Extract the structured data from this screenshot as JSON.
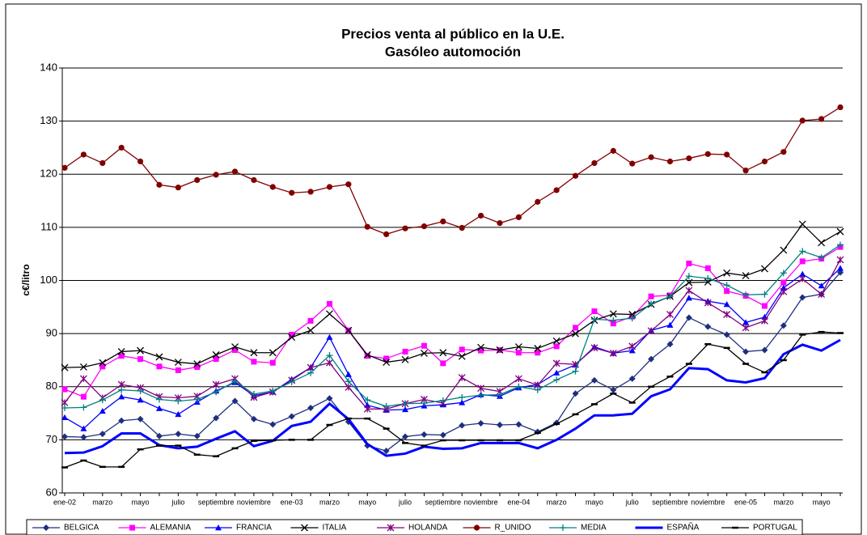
{
  "chart_data": {
    "type": "line",
    "title": "Precios venta al público en la U.E.",
    "subtitle": "Gasóleo automoción",
    "y_label": "c€/litro",
    "categories": [
      "ene-02",
      null,
      "marzo",
      null,
      "mayo",
      null,
      "julio",
      null,
      "septiembre",
      null,
      "noviembre",
      null,
      "ene-03",
      null,
      "marzo",
      null,
      "mayo",
      null,
      "julio",
      null,
      "septiembre",
      null,
      "noviembre",
      null,
      "ene-04",
      null,
      "marzo",
      null,
      "mayo",
      null,
      "julio",
      null,
      "septiembre",
      null,
      "noviembre",
      null,
      "ene-05",
      null,
      "marzo",
      null,
      "mayo",
      null
    ],
    "ylim": [
      60,
      140
    ],
    "yticks": [
      60,
      70,
      80,
      90,
      100,
      110,
      120,
      130,
      140
    ],
    "grid": true,
    "legend": "bottom",
    "series": [
      {
        "name": "BELGICA",
        "color": "#1f2f7f",
        "marker": "diamond",
        "values": [
          70.6,
          70.5,
          71.1,
          73.6,
          73.9,
          70.7,
          71.1,
          70.7,
          74.1,
          77.3,
          73.9,
          72.9,
          74.4,
          76,
          77.8,
          73.4,
          68.9,
          67.9,
          70.6,
          71,
          70.9,
          72.7,
          73.1,
          72.8,
          72.9,
          71.5,
          73.2,
          78.7,
          81.2,
          79.4,
          81.5,
          85.2,
          88,
          93,
          91.3,
          89.8,
          86.6,
          86.9,
          91.5,
          96.8,
          97.4,
          101.5
        ]
      },
      {
        "name": "ALEMANIA",
        "color": "#ff00ff",
        "marker": "square",
        "values": [
          79.5,
          78.1,
          83.8,
          85.8,
          85.2,
          83.8,
          83.1,
          83.7,
          85.2,
          86.9,
          84.7,
          84.5,
          89.8,
          92.4,
          95.6,
          90.6,
          85.8,
          85.3,
          86.6,
          87.7,
          84.4,
          87,
          86.8,
          86.9,
          86.4,
          86.4,
          87.6,
          91.1,
          94.2,
          91.9,
          93.2,
          97,
          97.2,
          103.2,
          102.3,
          98,
          97.1,
          95.2,
          99.6,
          103.6,
          104.1,
          106.3
        ]
      },
      {
        "name": "FRANCIA",
        "color": "#0000ff",
        "marker": "triangle",
        "values": [
          74.2,
          72.1,
          75.4,
          78.1,
          77.5,
          75.9,
          74.8,
          77.1,
          79.2,
          80.8,
          78.3,
          79,
          81.4,
          83.6,
          89.3,
          82.3,
          76.5,
          75.6,
          75.7,
          76.4,
          76.6,
          77,
          78.5,
          78.2,
          79.8,
          80.4,
          82.6,
          84.1,
          87.5,
          86.3,
          86.8,
          90.6,
          91.6,
          96.7,
          96.1,
          95.5,
          92.1,
          93.1,
          98.6,
          101.2,
          99,
          102.3
        ]
      },
      {
        "name": "ITALIA",
        "color": "#000000",
        "marker": "x",
        "values": [
          83.6,
          83.7,
          84.5,
          86.6,
          86.8,
          85.6,
          84.6,
          84.3,
          86,
          87.5,
          86.4,
          86.4,
          89.3,
          90.6,
          93.7,
          90.6,
          86,
          84.6,
          85.1,
          86.3,
          86.4,
          85.7,
          87.4,
          86.9,
          87.5,
          87.2,
          88.6,
          90,
          92.5,
          93.7,
          93.6,
          95.5,
          97,
          99.6,
          99.7,
          101.4,
          100.9,
          102.2,
          105.7,
          110.6,
          107.1,
          109.2
        ]
      },
      {
        "name": "HOLANDA",
        "color": "#800080",
        "marker": "star",
        "values": [
          77,
          81.5,
          77.9,
          80.4,
          79.8,
          78.1,
          77.9,
          78.2,
          80.4,
          81.5,
          78,
          79,
          81.2,
          83.6,
          84.5,
          79.9,
          75.8,
          75.8,
          76.8,
          77.6,
          76.9,
          81.7,
          79.7,
          79.1,
          81.5,
          80.3,
          84.4,
          84.2,
          87.3,
          86.3,
          87.6,
          90.5,
          93.6,
          98.1,
          95.8,
          93.6,
          91.1,
          92.4,
          97.9,
          100.3,
          97.4,
          103.9
        ]
      },
      {
        "name": "R_UNIDO",
        "color": "#800000",
        "marker": "circle",
        "values": [
          121.2,
          123.7,
          122.1,
          125,
          122.4,
          118,
          117.5,
          118.9,
          119.9,
          120.5,
          118.9,
          117.6,
          116.5,
          116.7,
          117.6,
          118.1,
          110.1,
          108.7,
          109.8,
          110.2,
          111.1,
          109.9,
          112.2,
          110.8,
          111.9,
          114.8,
          117,
          119.7,
          122.1,
          124.4,
          122,
          123.2,
          122.4,
          123,
          123.8,
          123.7,
          120.7,
          122.4,
          124.2,
          130.1,
          130.4,
          132.6
        ]
      },
      {
        "name": "MEDIA",
        "color": "#008080",
        "marker": "plus",
        "values": [
          76,
          76.1,
          77.5,
          79.4,
          79.2,
          77.6,
          77.3,
          77.6,
          79,
          81,
          78.6,
          79.2,
          80.9,
          82.6,
          85.9,
          81,
          77.5,
          76.3,
          76.8,
          76.9,
          77.4,
          78,
          78.4,
          78.5,
          80,
          79.4,
          81.3,
          82.9,
          92.7,
          92.5,
          92.9,
          95.6,
          97,
          100.8,
          100.4,
          99.1,
          97.3,
          97.4,
          101.4,
          105.5,
          104.3,
          106.7
        ]
      },
      {
        "name": "ESPAÑA",
        "color": "#0000ff",
        "marker": "none",
        "width": 3,
        "values": [
          67.5,
          67.6,
          68.8,
          71.2,
          71.2,
          69,
          68.4,
          68.7,
          70.2,
          71.6,
          68.8,
          69.8,
          72.6,
          73.4,
          76.8,
          73.9,
          69.2,
          67,
          67.4,
          68.7,
          68.3,
          68.4,
          69.4,
          69.4,
          69.4,
          68.4,
          70,
          72.1,
          74.6,
          74.6,
          74.9,
          78.2,
          79.5,
          83.5,
          83.3,
          81.2,
          80.8,
          81.6,
          86.1,
          87.9,
          86.8,
          88.8
        ]
      },
      {
        "name": "PORTUGAL",
        "color": "#000000",
        "marker": "dash",
        "values": [
          64.8,
          66.1,
          64.9,
          64.9,
          68.2,
          68.9,
          68.9,
          67.2,
          66.9,
          68.4,
          69.8,
          69.9,
          70,
          70,
          72.8,
          74,
          74,
          72.1,
          69.4,
          68.9,
          69.9,
          69.9,
          69.9,
          69.9,
          69.9,
          71.3,
          73,
          74.8,
          76.7,
          78.7,
          77,
          80,
          81.9,
          84.3,
          88,
          87.3,
          84.3,
          82.7,
          85,
          89.8,
          90.3,
          90.1
        ]
      }
    ]
  }
}
